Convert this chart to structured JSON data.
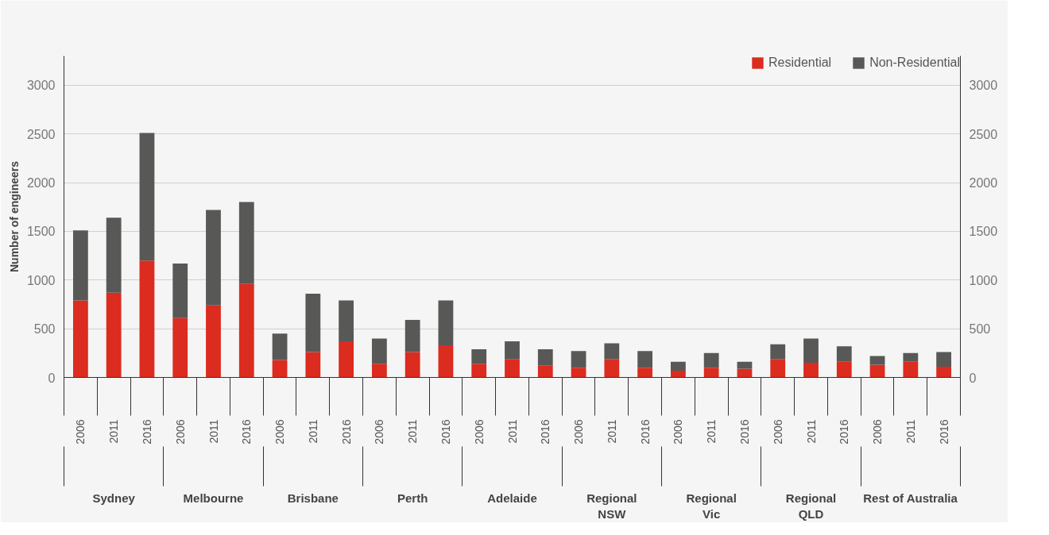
{
  "chart_data": {
    "type": "bar",
    "stacked": true,
    "ylabel": "Number of engineers",
    "categories": [
      "2006",
      "2011",
      "2016",
      "2006",
      "2011",
      "2016",
      "2006",
      "2011",
      "2016",
      "2006",
      "2011",
      "2016",
      "2006",
      "2011",
      "2016",
      "2006",
      "2011",
      "2016",
      "2006",
      "2011",
      "2016",
      "2006",
      "2011",
      "2016",
      "2006",
      "2011",
      "2016"
    ],
    "annotations": [
      "Sydney",
      "Melbourne",
      "Brisbane",
      "Perth",
      "Adelaide",
      "Regional\nNSW",
      "Regional\nVic",
      "Regional\nQLD",
      "Rest of Australia"
    ],
    "series": [
      {
        "name": "Residential",
        "color": "#dc2b1f",
        "values": [
          790,
          870,
          1200,
          610,
          740,
          960,
          180,
          260,
          370,
          140,
          260,
          330,
          140,
          190,
          120,
          100,
          190,
          100,
          70,
          100,
          90,
          190,
          150,
          160,
          130,
          160,
          110
        ]
      },
      {
        "name": "Non-Residential",
        "color": "#585856",
        "values": [
          720,
          770,
          1310,
          560,
          980,
          840,
          270,
          600,
          420,
          260,
          330,
          460,
          150,
          180,
          170,
          170,
          160,
          170,
          90,
          150,
          70,
          150,
          250,
          160,
          90,
          90,
          150
        ]
      }
    ],
    "ylim": [
      0,
      3300
    ],
    "yticks": [
      0,
      500,
      1000,
      1500,
      2000,
      2500,
      3000
    ],
    "y2lim": [
      0,
      3300
    ],
    "y2ticks": [
      0,
      500,
      1000,
      1500,
      2000,
      2500,
      3000
    ],
    "grid": "y",
    "legend": "top right"
  }
}
